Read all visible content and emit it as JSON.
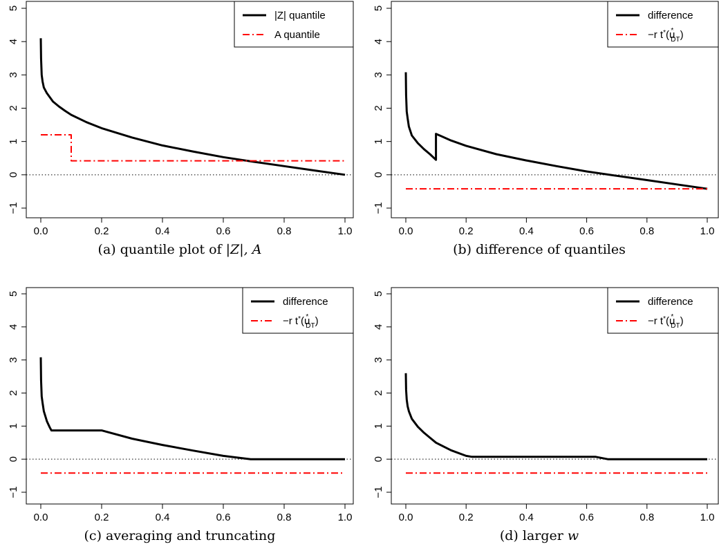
{
  "figure": {
    "captions": [
      {
        "prefix": "(a) quantile plot of ",
        "math": "|Z|, A",
        "suffix": ""
      },
      {
        "prefix": "(b) difference of quantiles",
        "math": "",
        "suffix": ""
      },
      {
        "prefix": "(c) averaging and truncating",
        "math": "",
        "suffix": ""
      },
      {
        "prefix": "(d) larger ",
        "math": "w",
        "suffix": ""
      }
    ]
  },
  "colors": {
    "primary": "#000000",
    "reference": "#ff0000",
    "zero_line": "#000000"
  },
  "chart_data": [
    {
      "type": "line",
      "panel": "a",
      "xlim": [
        0,
        1
      ],
      "ylim": [
        -1,
        5
      ],
      "x_ticks": [
        "0.0",
        "0.2",
        "0.4",
        "0.6",
        "0.8",
        "1.0"
      ],
      "y_ticks": [
        "−1",
        "0",
        "1",
        "2",
        "3",
        "4",
        "5"
      ],
      "grid": false,
      "hline": 0,
      "legend_position": "top-right",
      "series": [
        {
          "name": "|Z| quantile",
          "style": "solid",
          "x": [
            0,
            0.001,
            0.003,
            0.006,
            0.01,
            0.02,
            0.04,
            0.06,
            0.08,
            0.1,
            0.15,
            0.2,
            0.3,
            0.4,
            0.5,
            0.6,
            0.7,
            0.8,
            0.9,
            1.0
          ],
          "y": [
            4.1,
            3.5,
            3.0,
            2.8,
            2.62,
            2.45,
            2.2,
            2.05,
            1.92,
            1.8,
            1.58,
            1.4,
            1.12,
            0.88,
            0.7,
            0.53,
            0.39,
            0.26,
            0.13,
            0.0
          ]
        },
        {
          "name": "A quantile",
          "style": "dashdot",
          "x": [
            0,
            0.1,
            0.1,
            1.0
          ],
          "y": [
            1.2,
            1.2,
            0.42,
            0.42
          ]
        }
      ]
    },
    {
      "type": "line",
      "panel": "b",
      "xlim": [
        0,
        1
      ],
      "ylim": [
        -1,
        5
      ],
      "x_ticks": [
        "0.0",
        "0.2",
        "0.4",
        "0.6",
        "0.8",
        "1.0"
      ],
      "y_ticks": [
        "−1",
        "0",
        "1",
        "2",
        "3",
        "4",
        "5"
      ],
      "grid": false,
      "hline": 0,
      "legend_position": "top-right",
      "series": [
        {
          "name": "difference",
          "style": "solid",
          "x": [
            0,
            0.001,
            0.003,
            0.006,
            0.01,
            0.02,
            0.04,
            0.06,
            0.08,
            0.1,
            0.1,
            0.15,
            0.2,
            0.3,
            0.4,
            0.5,
            0.6,
            0.7,
            0.8,
            0.9,
            1.0
          ],
          "y": [
            3.08,
            2.4,
            1.9,
            1.7,
            1.45,
            1.18,
            0.95,
            0.77,
            0.62,
            0.45,
            1.23,
            1.03,
            0.87,
            0.62,
            0.43,
            0.26,
            0.1,
            -0.03,
            -0.16,
            -0.29,
            -0.42
          ]
        },
        {
          "name": "−r t*(u*DT)",
          "style": "dashdot",
          "x": [
            0,
            1.0
          ],
          "y": [
            -0.42,
            -0.42
          ]
        }
      ]
    },
    {
      "type": "line",
      "panel": "c",
      "xlim": [
        0,
        1
      ],
      "ylim": [
        -1,
        5
      ],
      "x_ticks": [
        "0.0",
        "0.2",
        "0.4",
        "0.6",
        "0.8",
        "1.0"
      ],
      "y_ticks": [
        "−1",
        "0",
        "1",
        "2",
        "3",
        "4",
        "5"
      ],
      "grid": false,
      "hline": 0,
      "legend_position": "top-right",
      "series": [
        {
          "name": "difference",
          "style": "solid",
          "x": [
            0,
            0.001,
            0.003,
            0.006,
            0.01,
            0.02,
            0.03,
            0.035,
            0.2,
            0.3,
            0.4,
            0.5,
            0.6,
            0.69,
            1.0
          ],
          "y": [
            3.08,
            2.4,
            1.9,
            1.7,
            1.45,
            1.15,
            0.95,
            0.87,
            0.87,
            0.62,
            0.43,
            0.26,
            0.1,
            0.0,
            0.0
          ]
        },
        {
          "name": "−r t*(u*DT)",
          "style": "dashdot",
          "x": [
            0,
            1.0
          ],
          "y": [
            -0.42,
            -0.42
          ]
        }
      ]
    },
    {
      "type": "line",
      "panel": "d",
      "xlim": [
        0,
        1
      ],
      "ylim": [
        -1,
        5
      ],
      "x_ticks": [
        "0.0",
        "0.2",
        "0.4",
        "0.6",
        "0.8",
        "1.0"
      ],
      "y_ticks": [
        "−1",
        "0",
        "1",
        "2",
        "3",
        "4",
        "5"
      ],
      "grid": false,
      "hline": 0,
      "legend_position": "top-right",
      "series": [
        {
          "name": "difference",
          "style": "solid",
          "x": [
            0,
            0.001,
            0.003,
            0.006,
            0.01,
            0.02,
            0.04,
            0.06,
            0.08,
            0.1,
            0.15,
            0.2,
            0.22,
            0.63,
            0.67,
            1.0
          ],
          "y": [
            2.6,
            2.1,
            1.8,
            1.6,
            1.45,
            1.22,
            0.98,
            0.8,
            0.65,
            0.5,
            0.27,
            0.1,
            0.07,
            0.07,
            0.0,
            0.0
          ]
        },
        {
          "name": "−r t*(u*DT)",
          "style": "dashdot",
          "x": [
            0,
            1.0
          ],
          "y": [
            -0.42,
            -0.42
          ]
        }
      ]
    }
  ]
}
